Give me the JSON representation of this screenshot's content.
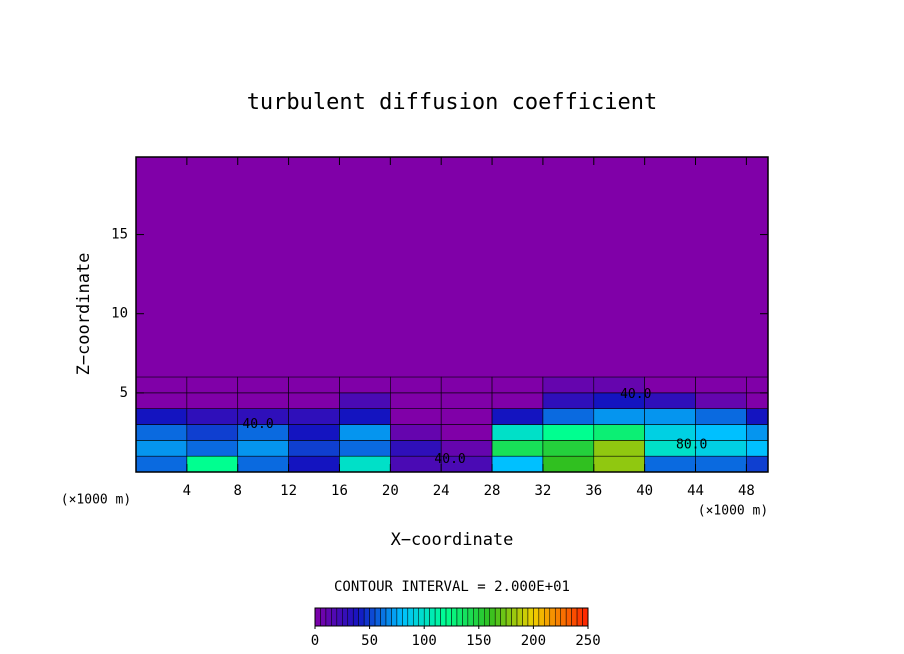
{
  "chart_data": {
    "type": "contour",
    "title": "turbulent diffusion coefficient",
    "x_label": "X−coordinate",
    "y_label": "Z−coordinate",
    "x_unit_label": "(×1000 m)",
    "x_unit_label_right": "(×1000 m)",
    "subtitle": "CONTOUR INTERVAL = 2.000E+01",
    "x": [
      2,
      6,
      10,
      14,
      18,
      22,
      26,
      30,
      34,
      38,
      42,
      46,
      50
    ],
    "y": [
      0.5,
      1.5,
      2.5,
      3.5,
      4.5,
      5.5
    ],
    "values": [
      [
        60,
        120,
        60,
        40,
        100,
        20,
        20,
        80,
        160,
        180,
        60,
        60,
        50
      ],
      [
        70,
        60,
        70,
        50,
        60,
        30,
        10,
        140,
        150,
        180,
        100,
        90,
        80
      ],
      [
        60,
        50,
        60,
        40,
        70,
        10,
        0,
        100,
        120,
        130,
        90,
        80,
        70
      ],
      [
        40,
        30,
        30,
        30,
        40,
        0,
        0,
        40,
        60,
        70,
        70,
        60,
        40
      ],
      [
        0,
        0,
        0,
        0,
        20,
        0,
        0,
        0,
        30,
        40,
        30,
        10,
        0
      ],
      [
        0,
        0,
        0,
        0,
        0,
        0,
        0,
        0,
        10,
        10,
        0,
        0,
        0
      ]
    ],
    "annotations": [
      {
        "text": "40.0",
        "x": 9.6,
        "y": 3
      },
      {
        "text": "40.0",
        "x": 24.7,
        "y": 0.8
      },
      {
        "text": "40.0",
        "x": 39.3,
        "y": 4.9
      },
      {
        "text": "80.0",
        "x": 43.7,
        "y": 1.7
      }
    ],
    "xlim": [
      0,
      49.7
    ],
    "ylim": [
      0,
      19.9
    ],
    "xticks": [
      4,
      8,
      12,
      16,
      20,
      24,
      28,
      32,
      36,
      40,
      44,
      48
    ],
    "yticks": [
      5,
      10,
      15
    ],
    "colorscale": [
      [
        0,
        "#8000a8"
      ],
      [
        40,
        "#1414c0"
      ],
      [
        80,
        "#00c0ff"
      ],
      [
        120,
        "#00ff90"
      ],
      [
        160,
        "#30c020"
      ],
      [
        200,
        "#f0d000"
      ],
      [
        250,
        "#ff2000"
      ]
    ],
    "colorbar_lim": [
      0,
      250
    ],
    "colorbar_ticks": [
      0,
      50,
      100,
      150,
      200,
      250
    ]
  }
}
